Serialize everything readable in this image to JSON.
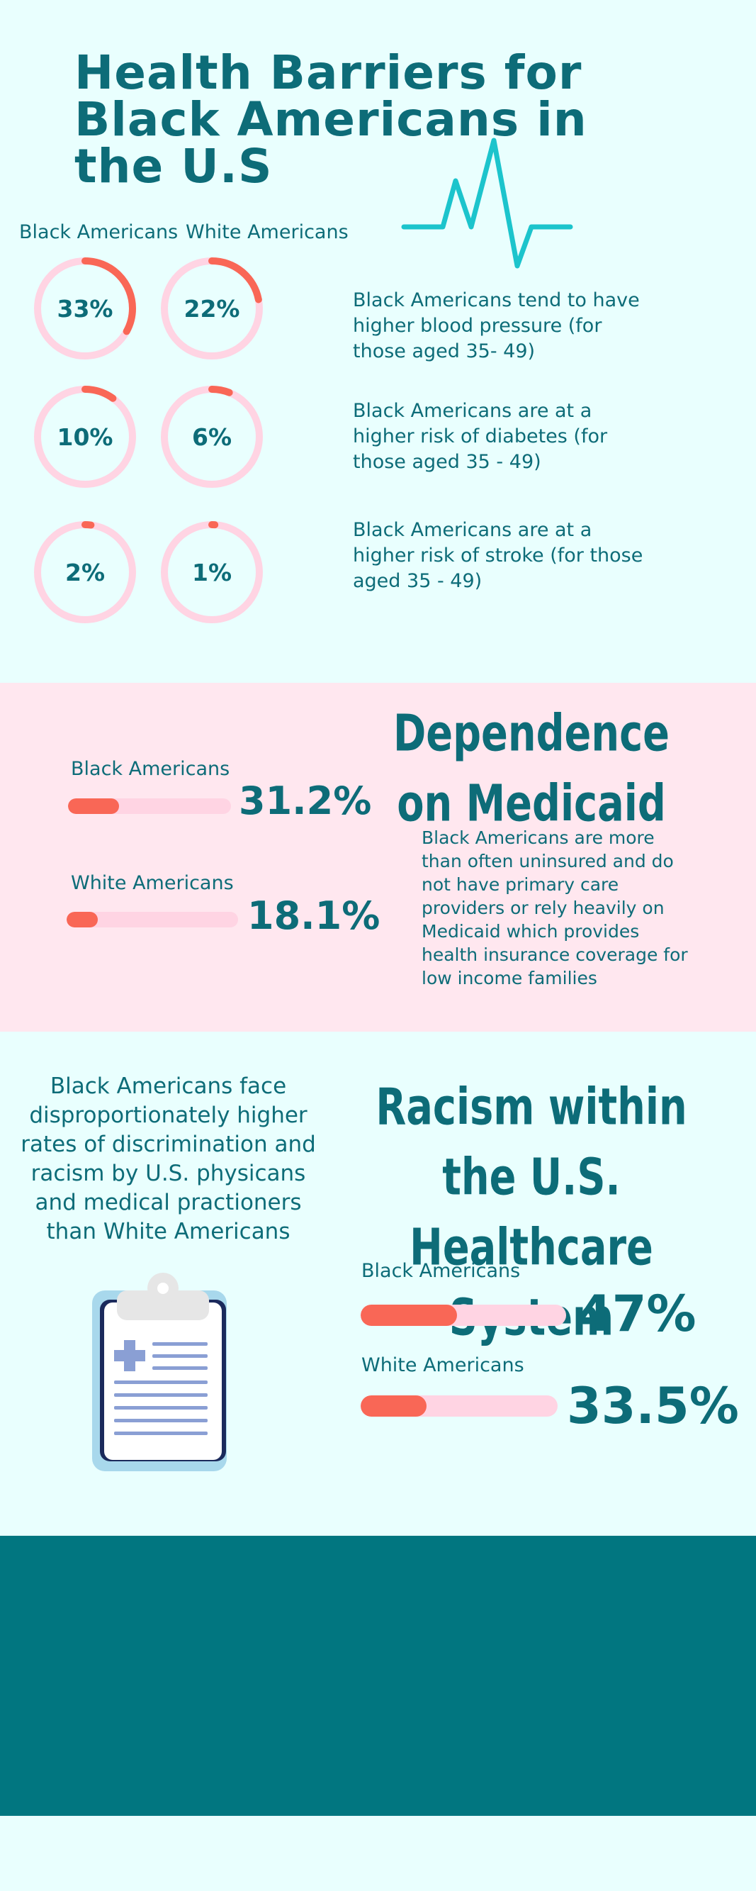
{
  "header": {
    "title": "Health Barriers for Black Americans in the U.S",
    "col_black": "Black Americans",
    "col_white": "White Americans"
  },
  "stats": [
    {
      "black_pct": "33%",
      "white_pct": "22%",
      "black_value": 33,
      "white_value": 22,
      "text": "Black Americans tend to have higher blood pressure (for those aged  35- 49)"
    },
    {
      "black_pct": "10%",
      "white_pct": "6%",
      "black_value": 10,
      "white_value": 6,
      "text": "Black Americans are at a higher risk of diabetes (for those aged 35 - 49)"
    },
    {
      "black_pct": "2%",
      "white_pct": "1%",
      "black_value": 2,
      "white_value": 1,
      "text": "Black Americans are at a higher risk of stroke (for those aged 35 - 49)"
    }
  ],
  "medicaid": {
    "title": "Dependence on Medicaid",
    "black_label": "Black Americans",
    "black_pct": "31.2%",
    "black_value": 31.2,
    "white_label": "White Americans",
    "white_pct": "18.1%",
    "white_value": 18.1,
    "description": "Black Americans are more than often uninsured and do not have primary care providers or rely heavily on Medicaid which provides health insurance coverage for low income families"
  },
  "racism": {
    "title": "Racism within the U.S. Healthcare System",
    "description": "Black Americans face disproportionately higher rates of discrimination and racism by U.S. physicans and medical practioners than White Americans",
    "black_label": "Black Americans",
    "black_pct": "47%",
    "black_value": 47,
    "white_label": "White Americans",
    "white_pct": "33.5%",
    "white_value": 33.5
  },
  "colors": {
    "background": "#e9fffe",
    "teal_text": "#0d6c78",
    "accent_red": "#f96756",
    "track_pink": "#ffd4e3",
    "section_pink": "#ffe7ef",
    "footer_teal": "#017680",
    "heartbeat_cyan": "#1cc4cc"
  },
  "icons": {
    "heartbeat": "heartbeat-line-icon",
    "clipboard": "medical-clipboard-icon"
  }
}
